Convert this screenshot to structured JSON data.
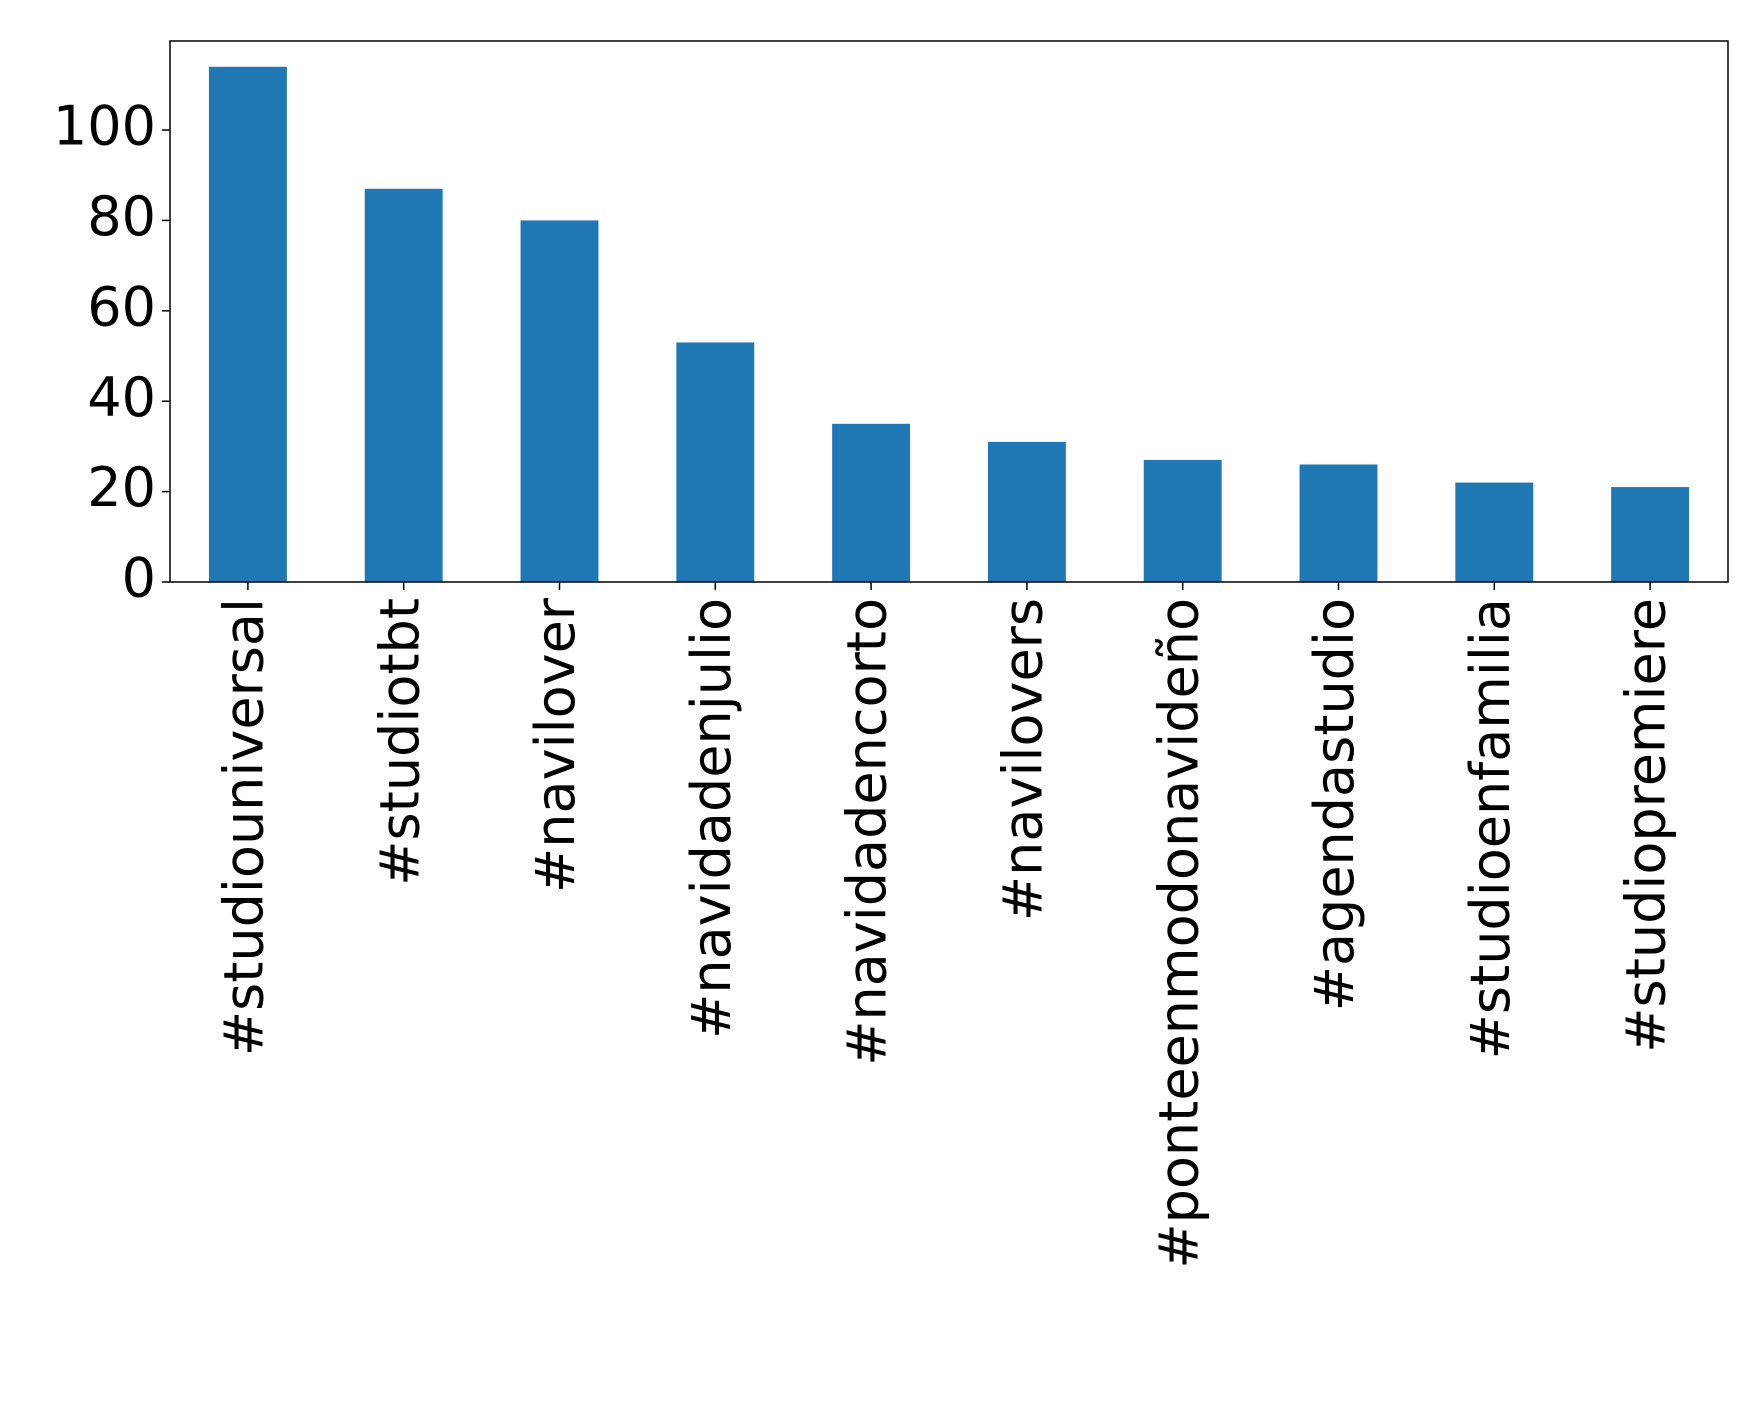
{
  "chart_data": {
    "type": "bar",
    "categories": [
      "#studiouniversal",
      "#studiotbt",
      "#navilover",
      "#navidadenjulio",
      "#navidadencorto",
      "#navilovers",
      "#ponteenmodonavideño",
      "#agendastudio",
      "#studioenfamilia",
      "#studiopremiere"
    ],
    "values": [
      114,
      87,
      80,
      53,
      35,
      31,
      27,
      26,
      22,
      21
    ],
    "color": "#1f77b4",
    "ylim": [
      0,
      119.7
    ],
    "yticks": [
      0,
      20,
      40,
      60,
      80,
      100
    ],
    "grid": false
  }
}
